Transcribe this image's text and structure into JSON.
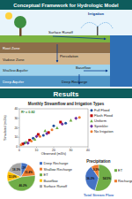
{
  "header": {
    "title": "Conceptual Framework for Hydrologic Model"
  },
  "diagram": {
    "layers": [
      "Root Zone",
      "Vadose Zone",
      "Shallow Aquifer",
      "Deep Aquifer"
    ],
    "processes": [
      "Irrigation",
      "Surface Runoff",
      "Percolation",
      "Baseflow",
      "Deep Recharge"
    ]
  },
  "results": {
    "title": "Results"
  },
  "chart_data": [
    {
      "type": "scatter",
      "title": "Monthly Streamflow and Irrigation Types",
      "x_label": "Observed (m3/s)",
      "y_label": "Simulated (m3/s)",
      "xlim": [
        0,
        40
      ],
      "ylim": [
        0,
        40
      ],
      "xticks": [
        0,
        10,
        20,
        30,
        40
      ],
      "yticks": [
        0,
        10,
        20,
        30,
        40
      ],
      "grid": false,
      "legend": "upper right",
      "annotations": [
        "R² = 0.82"
      ],
      "series": [
        {
          "name": "Full Flood",
          "color": "#1f4e9c",
          "marker": "circle",
          "x": [
            3,
            8,
            14,
            20,
            27
          ],
          "values": [
            4,
            9,
            12,
            22,
            25
          ]
        },
        {
          "name": "Flash Flood",
          "color": "#c00000",
          "marker": "square",
          "x": [
            2,
            6,
            11,
            17,
            24
          ],
          "values": [
            3,
            7,
            13,
            15,
            26
          ]
        },
        {
          "name": "Uniform",
          "color": "#70ad47",
          "marker": "triangle",
          "x": [
            4,
            9,
            15,
            22,
            30
          ],
          "values": [
            5,
            8,
            17,
            20,
            28
          ]
        },
        {
          "name": "Sprinkler",
          "color": "#7030a0",
          "marker": "diamond",
          "x": [
            5,
            10,
            16,
            25,
            33
          ],
          "values": [
            4,
            11,
            14,
            24,
            30
          ]
        },
        {
          "name": "No Irrigation",
          "color": "#ed7d31",
          "marker": "circle",
          "x": [
            1,
            7,
            12,
            19,
            35
          ],
          "values": [
            2,
            6,
            11,
            18,
            31
          ]
        }
      ]
    },
    {
      "type": "pie",
      "categories": [
        "Deep Recharge",
        "Shallow Recharge",
        "ET",
        "Baseflow",
        "Surface Runoff"
      ],
      "values": [
        8.1,
        15.4,
        46.2,
        12.0,
        18.3
      ],
      "value_labels": [
        "8.1%",
        "15.4%",
        "46.2%",
        "12.0%",
        "18.3%"
      ],
      "colors": [
        "#4472c4",
        "#ed7d31",
        "#70ad47",
        "#ffc000",
        "#a5a5a5"
      ],
      "data_labels": true,
      "legend": "right"
    },
    {
      "type": "pie",
      "title": "Precipitation",
      "categories": [
        "ET",
        "Total Stream Flow",
        "Recharge"
      ],
      "values": [
        54.5,
        36.2,
        9.3
      ],
      "value_labels": [
        "54.5%",
        "36.2%",
        "9.3%"
      ],
      "colors": [
        "#70ad47",
        "#4472c4",
        "#ed7d31"
      ],
      "data_labels": true
    }
  ]
}
